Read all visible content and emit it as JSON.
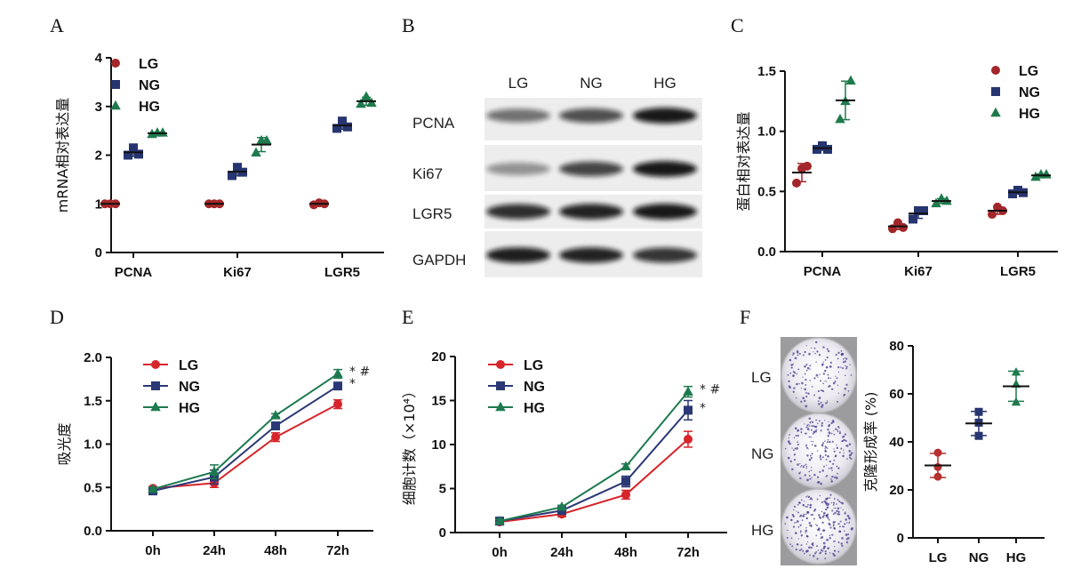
{
  "panel_labels": {
    "A": "A",
    "B": "B",
    "C": "C",
    "D": "D",
    "E": "E",
    "F": "F"
  },
  "blot": {
    "lanes": [
      "LG",
      "NG",
      "HG"
    ],
    "proteins": [
      "PCNA",
      "Ki67",
      "LGR5",
      "GAPDH"
    ]
  },
  "plates": {
    "labels": [
      "LG",
      "NG",
      "HG"
    ]
  },
  "chart_data": [
    {
      "id": "A",
      "type": "scatter",
      "title": "",
      "xlabel": "",
      "ylabel": "mRNA相对表达量",
      "ylim": [
        0,
        4
      ],
      "yticks": [
        0,
        1,
        2,
        3,
        4
      ],
      "ytick_labels": [
        "0",
        "1",
        "2",
        "3",
        "4"
      ],
      "categories": [
        "PCNA",
        "Ki67",
        "LGR5"
      ],
      "legend": "top-left",
      "series": [
        {
          "name": "LG",
          "color": "#a3262a",
          "marker": "circle",
          "values": [
            [
              1.0,
              1.0,
              1.0
            ],
            [
              1.0,
              1.0,
              1.0
            ],
            [
              0.98,
              1.02,
              1.0
            ]
          ]
        },
        {
          "name": "NG",
          "color": "#263470",
          "marker": "square",
          "values": [
            [
              2.0,
              2.15,
              2.02
            ],
            [
              1.58,
              1.75,
              1.65
            ],
            [
              2.55,
              2.7,
              2.58
            ]
          ]
        },
        {
          "name": "HG",
          "color": "#1e7a4c",
          "marker": "triangle",
          "values": [
            [
              2.43,
              2.46,
              2.46
            ],
            [
              2.05,
              2.3,
              2.3
            ],
            [
              3.05,
              3.2,
              3.07
            ]
          ]
        }
      ]
    },
    {
      "id": "C",
      "type": "scatter",
      "title": "",
      "xlabel": "",
      "ylabel": "蛋白相对表达量",
      "ylim": [
        0,
        1.5
      ],
      "yticks": [
        0,
        0.5,
        1.0,
        1.5
      ],
      "ytick_labels": [
        "0.0",
        "0.5",
        "1.0",
        "1.5"
      ],
      "categories": [
        "PCNA",
        "Ki67",
        "LGR5"
      ],
      "legend": "top-right",
      "series": [
        {
          "name": "LG",
          "color": "#a3262a",
          "marker": "circle",
          "values": [
            [
              0.57,
              0.69,
              0.71
            ],
            [
              0.19,
              0.24,
              0.2
            ],
            [
              0.31,
              0.37,
              0.34
            ]
          ]
        },
        {
          "name": "NG",
          "color": "#263470",
          "marker": "square",
          "values": [
            [
              0.85,
              0.88,
              0.85
            ],
            [
              0.27,
              0.34,
              0.34
            ],
            [
              0.48,
              0.51,
              0.49
            ]
          ]
        },
        {
          "name": "HG",
          "color": "#1e7a4c",
          "marker": "triangle",
          "values": [
            [
              1.1,
              1.25,
              1.42
            ],
            [
              0.4,
              0.44,
              0.42
            ],
            [
              0.62,
              0.64,
              0.64
            ]
          ]
        }
      ]
    },
    {
      "id": "D",
      "type": "line",
      "title": "",
      "xlabel": "",
      "ylabel": "吸光度",
      "ylim": [
        0,
        2
      ],
      "yticks": [
        0,
        0.5,
        1,
        1.5,
        2
      ],
      "ytick_labels": [
        "0.0",
        "0.5",
        "1.0",
        "1.5",
        "2.0"
      ],
      "categories": [
        "0h",
        "24h",
        "48h",
        "72h"
      ],
      "legend": "top-left",
      "series": [
        {
          "name": "LG",
          "color": "#d6252b",
          "marker": "circle",
          "values": [
            0.49,
            0.55,
            1.08,
            1.46
          ],
          "errors": [
            0.02,
            0.05,
            0.05,
            0.05
          ]
        },
        {
          "name": "NG",
          "color": "#2a3875",
          "marker": "square",
          "values": [
            0.46,
            0.62,
            1.21,
            1.67
          ],
          "errors": [
            0.02,
            0.08,
            0.04,
            0.02
          ]
        },
        {
          "name": "HG",
          "color": "#1d7a4f",
          "marker": "triangle",
          "values": [
            0.48,
            0.68,
            1.33,
            1.81
          ],
          "errors": [
            0.02,
            0.08,
            0.02,
            0.05
          ]
        }
      ],
      "annotations": [
        {
          "series": "HG",
          "text": "*  #"
        },
        {
          "series": "NG",
          "text": "*"
        }
      ]
    },
    {
      "id": "E",
      "type": "line",
      "title": "",
      "xlabel": "",
      "ylabel": "细胞计数（×10⁴）",
      "ylim": [
        0,
        20
      ],
      "yticks": [
        0,
        5,
        10,
        15,
        20
      ],
      "ytick_labels": [
        "0",
        "5",
        "10",
        "15",
        "20"
      ],
      "categories": [
        "0h",
        "24h",
        "48h",
        "72h"
      ],
      "legend": "top-left",
      "series": [
        {
          "name": "LG",
          "color": "#d6252b",
          "marker": "circle",
          "values": [
            1.2,
            2.1,
            4.3,
            10.6
          ],
          "errors": [
            0.2,
            0.3,
            0.5,
            0.9
          ]
        },
        {
          "name": "NG",
          "color": "#2a3875",
          "marker": "square",
          "values": [
            1.3,
            2.5,
            5.8,
            13.9
          ],
          "errors": [
            0.2,
            0.2,
            0.6,
            1.1
          ]
        },
        {
          "name": "HG",
          "color": "#1d7a4f",
          "marker": "triangle",
          "values": [
            1.3,
            2.9,
            7.5,
            16.0
          ],
          "errors": [
            0.2,
            0.2,
            0.3,
            0.6
          ]
        }
      ],
      "annotations": [
        {
          "series": "HG",
          "text": "*  #"
        },
        {
          "series": "NG",
          "text": "*"
        }
      ]
    },
    {
      "id": "F",
      "type": "scatter",
      "title": "",
      "xlabel": "",
      "ylabel": "克隆形成率 (%)",
      "ylim": [
        0,
        80
      ],
      "yticks": [
        0,
        20,
        40,
        60,
        80
      ],
      "ytick_labels": [
        "0",
        "20",
        "40",
        "60",
        "80"
      ],
      "categories": [
        "LG",
        "NG",
        "HG"
      ],
      "series": [
        {
          "name": "LG",
          "color": "#b5302f",
          "marker": "circle",
          "values": [
            35.5,
            29.5,
            25.5
          ]
        },
        {
          "name": "NG",
          "color": "#263470",
          "marker": "square",
          "values": [
            52.5,
            48.0,
            42.5
          ]
        },
        {
          "name": "HG",
          "color": "#1e7a4c",
          "marker": "triangle",
          "values": [
            69.0,
            64.0,
            56.5
          ]
        }
      ]
    }
  ]
}
